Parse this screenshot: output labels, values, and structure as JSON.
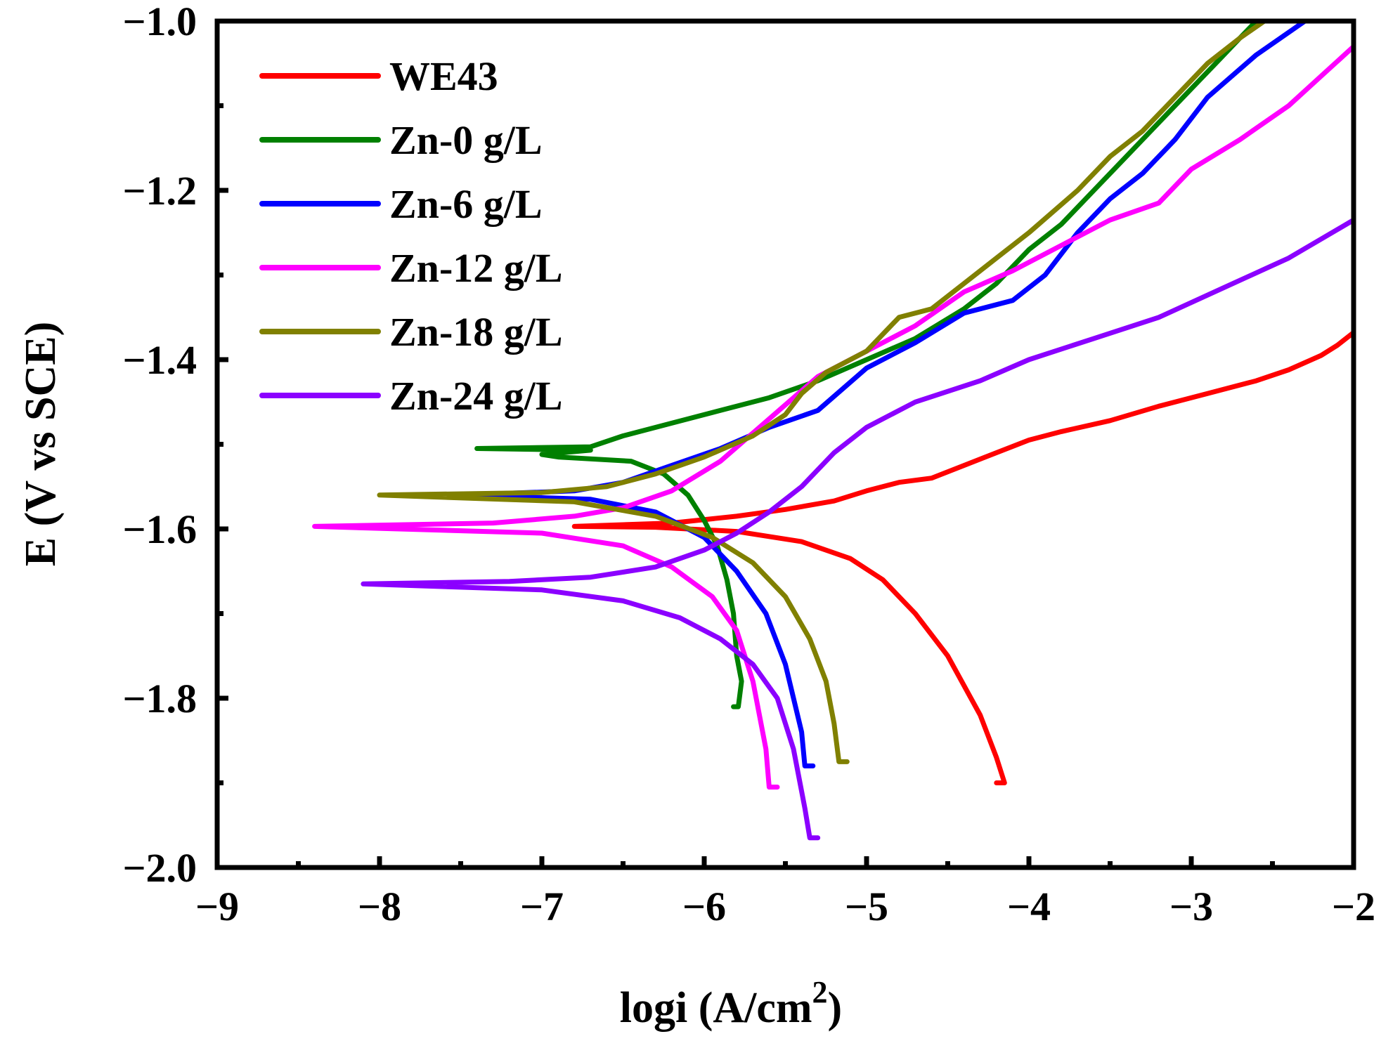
{
  "chart_data": {
    "type": "line",
    "title": "",
    "xlabel": "logi (A/cm",
    "xlabel_sup": "2",
    "xlabel_close": ")",
    "ylabel": "E (V vs SCE)",
    "xlim": [
      -9,
      -2
    ],
    "ylim": [
      -2.0,
      -1.0
    ],
    "x_ticks": [
      -9,
      -8,
      -7,
      -6,
      -5,
      -4,
      -3,
      -2
    ],
    "x_tick_labels": [
      "−9",
      "−8",
      "−7",
      "−6",
      "−5",
      "−4",
      "−3",
      "−2"
    ],
    "y_ticks": [
      -2.0,
      -1.8,
      -1.6,
      -1.4,
      -1.2,
      -1.0
    ],
    "y_tick_labels": [
      "−2.0",
      "−1.8",
      "−1.6",
      "−1.4",
      "−1.2",
      "−1.0"
    ],
    "grid": false,
    "legend_position": "top-left",
    "series": [
      {
        "name": "WE43",
        "color": "#ff0000",
        "points": [
          [
            -4.2,
            -1.9
          ],
          [
            -4.15,
            -1.9
          ],
          [
            -4.2,
            -1.87
          ],
          [
            -4.3,
            -1.82
          ],
          [
            -4.5,
            -1.75
          ],
          [
            -4.7,
            -1.7
          ],
          [
            -4.9,
            -1.66
          ],
          [
            -5.1,
            -1.635
          ],
          [
            -5.4,
            -1.615
          ],
          [
            -5.8,
            -1.603
          ],
          [
            -6.3,
            -1.598
          ],
          [
            -6.8,
            -1.597
          ],
          [
            -6.2,
            -1.593
          ],
          [
            -5.8,
            -1.585
          ],
          [
            -5.5,
            -1.577
          ],
          [
            -5.2,
            -1.567
          ],
          [
            -5.0,
            -1.555
          ],
          [
            -4.8,
            -1.545
          ],
          [
            -4.6,
            -1.54
          ],
          [
            -4.4,
            -1.525
          ],
          [
            -4.2,
            -1.51
          ],
          [
            -4.0,
            -1.495
          ],
          [
            -3.8,
            -1.485
          ],
          [
            -3.5,
            -1.472
          ],
          [
            -3.2,
            -1.455
          ],
          [
            -2.9,
            -1.44
          ],
          [
            -2.6,
            -1.425
          ],
          [
            -2.4,
            -1.412
          ],
          [
            -2.2,
            -1.395
          ],
          [
            -2.1,
            -1.383
          ],
          [
            -2.0,
            -1.368
          ]
        ]
      },
      {
        "name": "Zn-0 g/L",
        "color": "#008000",
        "points": [
          [
            -5.82,
            -1.81
          ],
          [
            -5.79,
            -1.81
          ],
          [
            -5.77,
            -1.78
          ],
          [
            -5.8,
            -1.75
          ],
          [
            -5.82,
            -1.7
          ],
          [
            -5.86,
            -1.66
          ],
          [
            -5.92,
            -1.62
          ],
          [
            -6.0,
            -1.59
          ],
          [
            -6.1,
            -1.56
          ],
          [
            -6.25,
            -1.535
          ],
          [
            -6.45,
            -1.52
          ],
          [
            -6.9,
            -1.515
          ],
          [
            -7.0,
            -1.512
          ],
          [
            -6.7,
            -1.507
          ],
          [
            -7.4,
            -1.505
          ],
          [
            -6.7,
            -1.503
          ],
          [
            -6.5,
            -1.49
          ],
          [
            -6.2,
            -1.475
          ],
          [
            -5.9,
            -1.46
          ],
          [
            -5.6,
            -1.445
          ],
          [
            -5.3,
            -1.425
          ],
          [
            -5.0,
            -1.4
          ],
          [
            -4.7,
            -1.375
          ],
          [
            -4.4,
            -1.34
          ],
          [
            -4.2,
            -1.31
          ],
          [
            -4.0,
            -1.27
          ],
          [
            -3.8,
            -1.24
          ],
          [
            -3.6,
            -1.2
          ],
          [
            -3.4,
            -1.16
          ],
          [
            -3.2,
            -1.12
          ],
          [
            -3.0,
            -1.08
          ],
          [
            -2.85,
            -1.05
          ],
          [
            -2.7,
            -1.02
          ],
          [
            -2.6,
            -1.0
          ]
        ]
      },
      {
        "name": "Zn-6 g/L",
        "color": "#0000ff",
        "points": [
          [
            -5.33,
            -1.88
          ],
          [
            -5.38,
            -1.88
          ],
          [
            -5.4,
            -1.84
          ],
          [
            -5.5,
            -1.76
          ],
          [
            -5.62,
            -1.7
          ],
          [
            -5.8,
            -1.65
          ],
          [
            -6.0,
            -1.61
          ],
          [
            -6.3,
            -1.58
          ],
          [
            -6.7,
            -1.565
          ],
          [
            -7.5,
            -1.56
          ],
          [
            -6.8,
            -1.555
          ],
          [
            -6.5,
            -1.545
          ],
          [
            -6.2,
            -1.525
          ],
          [
            -5.9,
            -1.505
          ],
          [
            -5.6,
            -1.48
          ],
          [
            -5.3,
            -1.46
          ],
          [
            -5.0,
            -1.41
          ],
          [
            -4.7,
            -1.38
          ],
          [
            -4.4,
            -1.345
          ],
          [
            -4.1,
            -1.33
          ],
          [
            -3.9,
            -1.3
          ],
          [
            -3.7,
            -1.25
          ],
          [
            -3.5,
            -1.21
          ],
          [
            -3.3,
            -1.18
          ],
          [
            -3.1,
            -1.14
          ],
          [
            -2.9,
            -1.09
          ],
          [
            -2.6,
            -1.04
          ],
          [
            -2.3,
            -1.0
          ]
        ]
      },
      {
        "name": "Zn-12 g/L",
        "color": "#ff00ff",
        "points": [
          [
            -5.55,
            -1.905
          ],
          [
            -5.6,
            -1.905
          ],
          [
            -5.62,
            -1.86
          ],
          [
            -5.7,
            -1.78
          ],
          [
            -5.8,
            -1.72
          ],
          [
            -5.95,
            -1.68
          ],
          [
            -6.2,
            -1.645
          ],
          [
            -6.5,
            -1.62
          ],
          [
            -7.0,
            -1.605
          ],
          [
            -8.4,
            -1.597
          ],
          [
            -7.3,
            -1.593
          ],
          [
            -6.8,
            -1.585
          ],
          [
            -6.5,
            -1.575
          ],
          [
            -6.2,
            -1.555
          ],
          [
            -5.9,
            -1.52
          ],
          [
            -5.6,
            -1.47
          ],
          [
            -5.3,
            -1.42
          ],
          [
            -5.0,
            -1.39
          ],
          [
            -4.7,
            -1.36
          ],
          [
            -4.4,
            -1.32
          ],
          [
            -4.1,
            -1.295
          ],
          [
            -3.8,
            -1.265
          ],
          [
            -3.5,
            -1.235
          ],
          [
            -3.2,
            -1.215
          ],
          [
            -3.0,
            -1.175
          ],
          [
            -2.7,
            -1.14
          ],
          [
            -2.4,
            -1.1
          ],
          [
            -2.2,
            -1.065
          ],
          [
            -2.0,
            -1.03
          ]
        ]
      },
      {
        "name": "Zn-18 g/L",
        "color": "#808000",
        "points": [
          [
            -5.12,
            -1.875
          ],
          [
            -5.17,
            -1.875
          ],
          [
            -5.2,
            -1.83
          ],
          [
            -5.25,
            -1.78
          ],
          [
            -5.35,
            -1.73
          ],
          [
            -5.5,
            -1.68
          ],
          [
            -5.7,
            -1.64
          ],
          [
            -5.95,
            -1.61
          ],
          [
            -6.3,
            -1.585
          ],
          [
            -6.8,
            -1.568
          ],
          [
            -8.0,
            -1.56
          ],
          [
            -7.0,
            -1.557
          ],
          [
            -6.6,
            -1.55
          ],
          [
            -6.3,
            -1.535
          ],
          [
            -6.0,
            -1.515
          ],
          [
            -5.7,
            -1.49
          ],
          [
            -5.5,
            -1.465
          ],
          [
            -5.4,
            -1.44
          ],
          [
            -5.25,
            -1.415
          ],
          [
            -5.0,
            -1.39
          ],
          [
            -4.8,
            -1.35
          ],
          [
            -4.6,
            -1.34
          ],
          [
            -4.4,
            -1.31
          ],
          [
            -4.2,
            -1.28
          ],
          [
            -4.0,
            -1.25
          ],
          [
            -3.7,
            -1.2
          ],
          [
            -3.5,
            -1.16
          ],
          [
            -3.3,
            -1.13
          ],
          [
            -3.1,
            -1.09
          ],
          [
            -2.9,
            -1.05
          ],
          [
            -2.7,
            -1.02
          ],
          [
            -2.55,
            -1.0
          ]
        ]
      },
      {
        "name": "Zn-24 g/L",
        "color": "#8b00ff",
        "points": [
          [
            -5.3,
            -1.965
          ],
          [
            -5.35,
            -1.965
          ],
          [
            -5.38,
            -1.93
          ],
          [
            -5.45,
            -1.86
          ],
          [
            -5.55,
            -1.8
          ],
          [
            -5.7,
            -1.76
          ],
          [
            -5.9,
            -1.73
          ],
          [
            -6.15,
            -1.705
          ],
          [
            -6.5,
            -1.685
          ],
          [
            -7.0,
            -1.672
          ],
          [
            -8.1,
            -1.665
          ],
          [
            -7.2,
            -1.662
          ],
          [
            -6.7,
            -1.657
          ],
          [
            -6.3,
            -1.645
          ],
          [
            -6.0,
            -1.625
          ],
          [
            -5.8,
            -1.605
          ],
          [
            -5.6,
            -1.58
          ],
          [
            -5.4,
            -1.55
          ],
          [
            -5.2,
            -1.51
          ],
          [
            -5.0,
            -1.48
          ],
          [
            -4.7,
            -1.45
          ],
          [
            -4.3,
            -1.425
          ],
          [
            -4.0,
            -1.4
          ],
          [
            -3.6,
            -1.375
          ],
          [
            -3.2,
            -1.35
          ],
          [
            -2.8,
            -1.315
          ],
          [
            -2.4,
            -1.28
          ],
          [
            -2.0,
            -1.235
          ]
        ]
      }
    ]
  }
}
